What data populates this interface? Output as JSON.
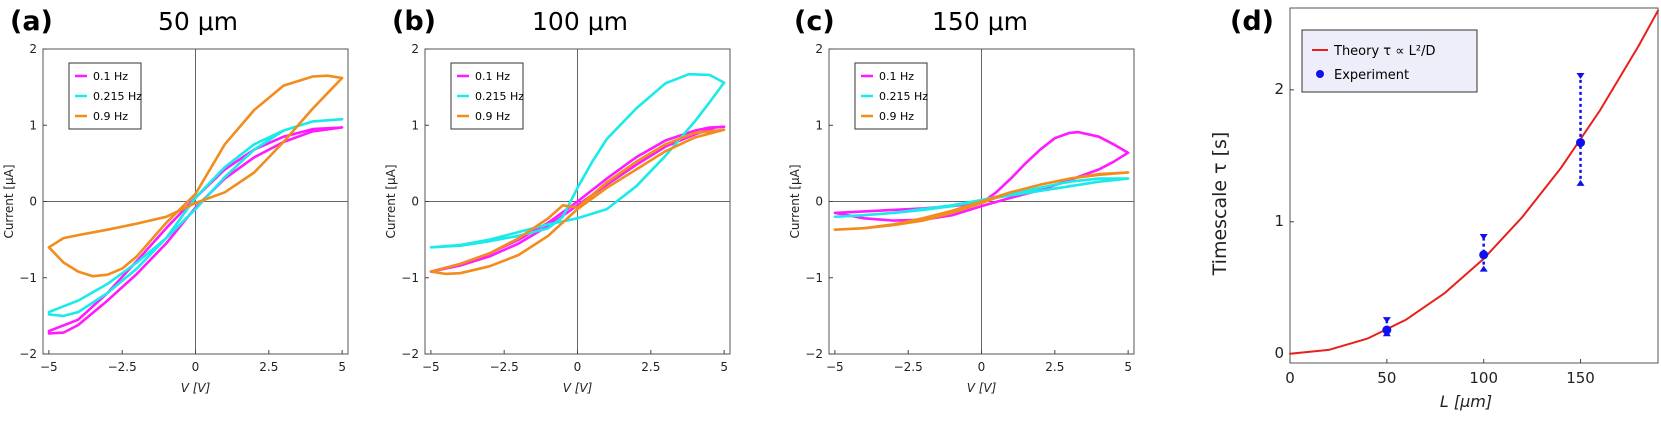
{
  "panels": [
    {
      "letter": "(a)",
      "title": "50 μm"
    },
    {
      "letter": "(b)",
      "title": "100 μm"
    },
    {
      "letter": "(c)",
      "title": "150 μm"
    },
    {
      "letter": "(d)",
      "title": ""
    }
  ],
  "chart_data": [
    {
      "type": "line",
      "title": "50 μm",
      "xlabel": "V [V]",
      "ylabel": "Current [μA]",
      "xlim": [
        -5.2,
        5.2
      ],
      "ylim": [
        -2,
        2
      ],
      "xticks": [
        -5,
        -2.5,
        0,
        2.5,
        5
      ],
      "xtick_labels": [
        "−5",
        "−2.5",
        "0",
        "2.5",
        "5"
      ],
      "yticks": [
        -2,
        -1,
        0,
        1,
        2
      ],
      "ytick_labels": [
        "−2",
        "−1",
        "0",
        "1",
        "2"
      ],
      "legend_position": "top-left",
      "series": [
        {
          "name": "0.1 Hz",
          "color": "#ff1aff",
          "x": [
            -5,
            -4.5,
            -4,
            -3,
            -2,
            -1,
            0,
            1,
            2,
            3,
            4,
            5,
            4,
            3,
            2,
            1,
            0,
            -1,
            -2,
            -3,
            -4,
            -5
          ],
          "y": [
            -1.73,
            -1.72,
            -1.62,
            -1.3,
            -0.95,
            -0.55,
            -0.08,
            0.3,
            0.58,
            0.78,
            0.92,
            0.97,
            0.95,
            0.85,
            0.68,
            0.42,
            0.05,
            -0.35,
            -0.78,
            -1.2,
            -1.55,
            -1.7
          ]
        },
        {
          "name": "0.215 Hz",
          "color": "#1aeaea",
          "x": [
            -5,
            -4.5,
            -4,
            -3,
            -2,
            -1,
            0,
            1,
            2,
            3,
            4,
            5,
            4,
            3,
            2,
            1,
            0,
            -1,
            -2,
            -3,
            -4,
            -5
          ],
          "y": [
            -1.48,
            -1.5,
            -1.45,
            -1.2,
            -0.88,
            -0.48,
            0.05,
            0.45,
            0.75,
            0.93,
            1.05,
            1.08,
            1.05,
            0.93,
            0.68,
            0.32,
            -0.1,
            -0.48,
            -0.8,
            -1.08,
            -1.3,
            -1.45
          ]
        },
        {
          "name": "0.9 Hz",
          "color": "#f28c1c",
          "x": [
            -5,
            -4.5,
            -4,
            -3,
            -2,
            -1,
            0,
            1,
            2,
            3,
            4,
            4.5,
            5,
            4.5,
            4,
            3,
            2,
            1,
            0,
            -1,
            -2,
            -2.5,
            -3,
            -3.5,
            -4,
            -4.5,
            -5
          ],
          "y": [
            -0.6,
            -0.48,
            -0.44,
            -0.37,
            -0.29,
            -0.2,
            -0.02,
            0.12,
            0.38,
            0.78,
            1.22,
            1.42,
            1.62,
            1.65,
            1.64,
            1.52,
            1.2,
            0.75,
            0.1,
            -0.28,
            -0.72,
            -0.88,
            -0.96,
            -0.98,
            -0.92,
            -0.8,
            -0.6
          ]
        }
      ]
    },
    {
      "type": "line",
      "title": "100 μm",
      "xlabel": "V [V]",
      "ylabel": "Current [μA]",
      "xlim": [
        -5.2,
        5.2
      ],
      "ylim": [
        -2,
        2
      ],
      "xticks": [
        -5,
        -2.5,
        0,
        2.5,
        5
      ],
      "xtick_labels": [
        "−5",
        "−2.5",
        "0",
        "2.5",
        "5"
      ],
      "yticks": [
        -2,
        -1,
        0,
        1,
        2
      ],
      "ytick_labels": [
        "−2",
        "−1",
        "0",
        "1",
        "2"
      ],
      "legend_position": "top-left",
      "series": [
        {
          "name": "0.1 Hz",
          "color": "#ff1aff",
          "x": [
            -5,
            -4,
            -3,
            -2,
            -1,
            0,
            1,
            2,
            3,
            4,
            4.7,
            5,
            4.5,
            4,
            3,
            2,
            1,
            0,
            -1,
            -2,
            -3,
            -4,
            -5
          ],
          "y": [
            -0.92,
            -0.84,
            -0.72,
            -0.55,
            -0.32,
            -0.05,
            0.22,
            0.48,
            0.72,
            0.88,
            0.97,
            0.98,
            0.97,
            0.93,
            0.8,
            0.58,
            0.3,
            0.0,
            -0.28,
            -0.5,
            -0.68,
            -0.82,
            -0.92
          ]
        },
        {
          "name": "0.215 Hz",
          "color": "#1aeaea",
          "x": [
            -5,
            -4,
            -3,
            -2,
            -1,
            -0.5,
            0,
            0.5,
            1,
            2,
            3,
            3.8,
            4.5,
            5,
            4.5,
            4,
            3,
            2,
            1,
            0,
            -1,
            -2,
            -3,
            -4,
            -5
          ],
          "y": [
            -0.6,
            -0.58,
            -0.52,
            -0.45,
            -0.35,
            -0.2,
            0.18,
            0.52,
            0.82,
            1.22,
            1.55,
            1.67,
            1.66,
            1.56,
            1.3,
            1.05,
            0.6,
            0.2,
            -0.1,
            -0.22,
            -0.3,
            -0.4,
            -0.5,
            -0.57,
            -0.6
          ]
        },
        {
          "name": "0.9 Hz",
          "color": "#f28c1c",
          "x": [
            -5,
            -4.5,
            -4,
            -3,
            -2,
            -1,
            0,
            1,
            2,
            3,
            4,
            5,
            4,
            3,
            2,
            1,
            0,
            -0.5,
            -1,
            -2,
            -3,
            -4,
            -5
          ],
          "y": [
            -0.92,
            -0.95,
            -0.94,
            -0.85,
            -0.7,
            -0.45,
            -0.1,
            0.18,
            0.42,
            0.66,
            0.84,
            0.94,
            0.9,
            0.75,
            0.52,
            0.25,
            -0.08,
            -0.05,
            -0.22,
            -0.48,
            -0.68,
            -0.82,
            -0.92
          ]
        }
      ]
    },
    {
      "type": "line",
      "title": "150 μm",
      "xlabel": "V [V]",
      "ylabel": "Current [μA]",
      "xlim": [
        -5.2,
        5.2
      ],
      "ylim": [
        -2,
        2
      ],
      "xticks": [
        -5,
        -2.5,
        0,
        2.5,
        5
      ],
      "xtick_labels": [
        "−5",
        "−2.5",
        "0",
        "2.5",
        "5"
      ],
      "yticks": [
        -2,
        -1,
        0,
        1,
        2
      ],
      "ytick_labels": [
        "−2",
        "−1",
        "0",
        "1",
        "2"
      ],
      "legend_position": "top-left",
      "series": [
        {
          "name": "0.1 Hz",
          "color": "#ff1aff",
          "x": [
            -5,
            -4,
            -3,
            -2,
            -1,
            0,
            0.5,
            1,
            1.5,
            2,
            2.5,
            3,
            3.3,
            4,
            4.5,
            5,
            4.5,
            4,
            3,
            2,
            1,
            0,
            -1,
            -2,
            -3,
            -4,
            -5
          ],
          "y": [
            -0.15,
            -0.13,
            -0.11,
            -0.09,
            -0.06,
            -0.02,
            0.12,
            0.3,
            0.5,
            0.68,
            0.83,
            0.9,
            0.91,
            0.85,
            0.75,
            0.64,
            0.52,
            0.42,
            0.28,
            0.15,
            0.05,
            -0.06,
            -0.18,
            -0.24,
            -0.25,
            -0.22,
            -0.15
          ]
        },
        {
          "name": "0.215 Hz",
          "color": "#1aeaea",
          "x": [
            -5,
            -4,
            -3,
            -2,
            -1,
            0,
            1,
            2,
            3,
            4,
            5,
            4,
            3,
            2,
            1,
            0,
            -1,
            -2,
            -3,
            -4,
            -5
          ],
          "y": [
            -0.2,
            -0.18,
            -0.15,
            -0.11,
            -0.06,
            0.02,
            0.08,
            0.14,
            0.2,
            0.26,
            0.3,
            0.3,
            0.26,
            0.18,
            0.1,
            0.02,
            -0.05,
            -0.1,
            -0.15,
            -0.18,
            -0.2
          ]
        },
        {
          "name": "0.9 Hz",
          "color": "#f28c1c",
          "x": [
            -5,
            -4,
            -3,
            -2,
            -1,
            0,
            1,
            2,
            3,
            4,
            5,
            4,
            3,
            2,
            1,
            0,
            -1,
            -2,
            -3,
            -4,
            -5
          ],
          "y": [
            -0.37,
            -0.35,
            -0.3,
            -0.22,
            -0.12,
            0.0,
            0.12,
            0.22,
            0.3,
            0.36,
            0.38,
            0.35,
            0.3,
            0.22,
            0.12,
            -0.02,
            -0.15,
            -0.25,
            -0.31,
            -0.35,
            -0.37
          ]
        }
      ]
    },
    {
      "type": "line",
      "title": "",
      "xlabel": "L [μm]",
      "ylabel": "Timescale τ [s]",
      "xlim": [
        0,
        190
      ],
      "ylim": [
        -0.07,
        2.62
      ],
      "xticks": [
        0,
        50,
        100,
        150
      ],
      "xtick_labels": [
        "0",
        "50",
        "100",
        "150"
      ],
      "yticks": [
        0,
        1,
        2
      ],
      "ytick_labels": [
        "0",
        "1",
        "2"
      ],
      "legend_position": "top-left",
      "series": [
        {
          "name": "Theory τ ∝ L²/D",
          "color": "#e8201c",
          "x": [
            0,
            20,
            40,
            60,
            80,
            100,
            120,
            140,
            160,
            180,
            190
          ],
          "y": [
            0,
            0.029,
            0.115,
            0.259,
            0.461,
            0.72,
            1.037,
            1.411,
            1.843,
            2.333,
            2.6
          ]
        },
        {
          "name": "Experiment",
          "color": "#1010ee",
          "x": [
            50,
            100,
            150
          ],
          "y": [
            0.18,
            0.75,
            1.6
          ],
          "err_low": [
            0.14,
            0.63,
            1.28
          ],
          "err_high": [
            0.27,
            0.9,
            2.12
          ]
        }
      ]
    }
  ]
}
